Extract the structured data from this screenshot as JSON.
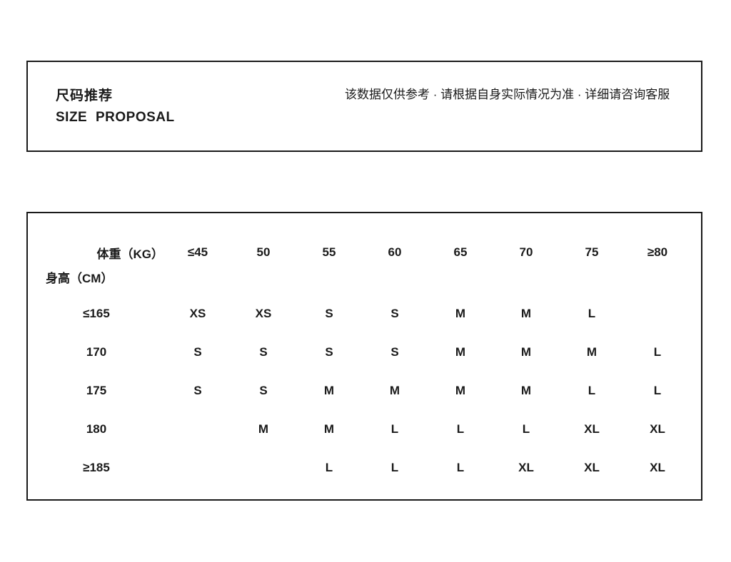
{
  "colors": {
    "text": "#1a1a1a",
    "border": "#1a1a1a",
    "background": "#ffffff"
  },
  "header": {
    "title_zh": "尺码推荐",
    "title_en": "SIZE PROPOSAL",
    "disclaimer": "该数据仅供参考 · 请根据自身实际情况为准 · 详细请咨询客服"
  },
  "size_table": {
    "corner_top_right": "体重（KG）",
    "corner_bottom_left": "身高（CM）",
    "weight_columns": [
      "≤45",
      "50",
      "55",
      "60",
      "65",
      "70",
      "75",
      "≥80"
    ],
    "rows": [
      {
        "height": "≤165",
        "sizes": [
          "XS",
          "XS",
          "S",
          "S",
          "M",
          "M",
          "L",
          ""
        ]
      },
      {
        "height": "170",
        "sizes": [
          "S",
          "S",
          "S",
          "S",
          "M",
          "M",
          "M",
          "L"
        ]
      },
      {
        "height": "175",
        "sizes": [
          "S",
          "S",
          "M",
          "M",
          "M",
          "M",
          "L",
          "L"
        ]
      },
      {
        "height": "180",
        "sizes": [
          "",
          "M",
          "M",
          "L",
          "L",
          "L",
          "XL",
          "XL"
        ]
      },
      {
        "height": "≥185",
        "sizes": [
          "",
          "",
          "L",
          "L",
          "L",
          "XL",
          "XL",
          "XL"
        ]
      }
    ]
  }
}
